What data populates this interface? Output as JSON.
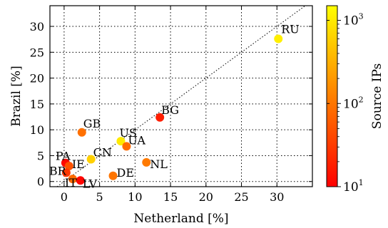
{
  "chart_data": {
    "type": "scatter",
    "xlabel": "Netherland [%]",
    "ylabel": "Brazil [%]",
    "xlim": [
      -2,
      35
    ],
    "ylim": [
      -1,
      34
    ],
    "xticks": [
      0,
      5,
      10,
      15,
      20,
      25,
      30
    ],
    "yticks": [
      0,
      5,
      10,
      15,
      20,
      25,
      30
    ],
    "grid": true,
    "diagonal_reference_line": true,
    "colorbar": {
      "label": "Source IPs",
      "scale": "log",
      "range": [
        10,
        1500
      ],
      "colormap": "autumn (red to yellow)",
      "tick_values": [
        10,
        100,
        1000
      ],
      "tick_labels": [
        {
          "base": "10",
          "exp": "1"
        },
        {
          "base": "10",
          "exp": "2"
        },
        {
          "base": "10",
          "exp": "3"
        }
      ]
    },
    "points": [
      {
        "label": "RU",
        "x": 30.2,
        "y": 27.6,
        "source_ips": 1100
      },
      {
        "label": "BG",
        "x": 13.5,
        "y": 12.4,
        "source_ips": 18
      },
      {
        "label": "GB",
        "x": 2.5,
        "y": 9.5,
        "source_ips": 90
      },
      {
        "label": "US",
        "x": 8.0,
        "y": 7.8,
        "source_ips": 1000
      },
      {
        "label": "UA",
        "x": 8.8,
        "y": 6.8,
        "source_ips": 80
      },
      {
        "label": "CN",
        "x": 3.8,
        "y": 4.3,
        "source_ips": 600
      },
      {
        "label": "NL",
        "x": 11.6,
        "y": 3.7,
        "source_ips": 110
      },
      {
        "label": "PA",
        "x": 0.2,
        "y": 3.6,
        "source_ips": 12
      },
      {
        "label": "IE",
        "x": 0.7,
        "y": 3.0,
        "source_ips": 50
      },
      {
        "label": "BR",
        "x": 0.3,
        "y": 1.7,
        "source_ips": 30
      },
      {
        "label": "DE",
        "x": 6.9,
        "y": 1.1,
        "source_ips": 100
      },
      {
        "label": "IT",
        "x": 1.2,
        "y": 0.5,
        "source_ips": 80
      },
      {
        "label": "LV",
        "x": 2.3,
        "y": 0.2,
        "source_ips": 11
      }
    ]
  }
}
